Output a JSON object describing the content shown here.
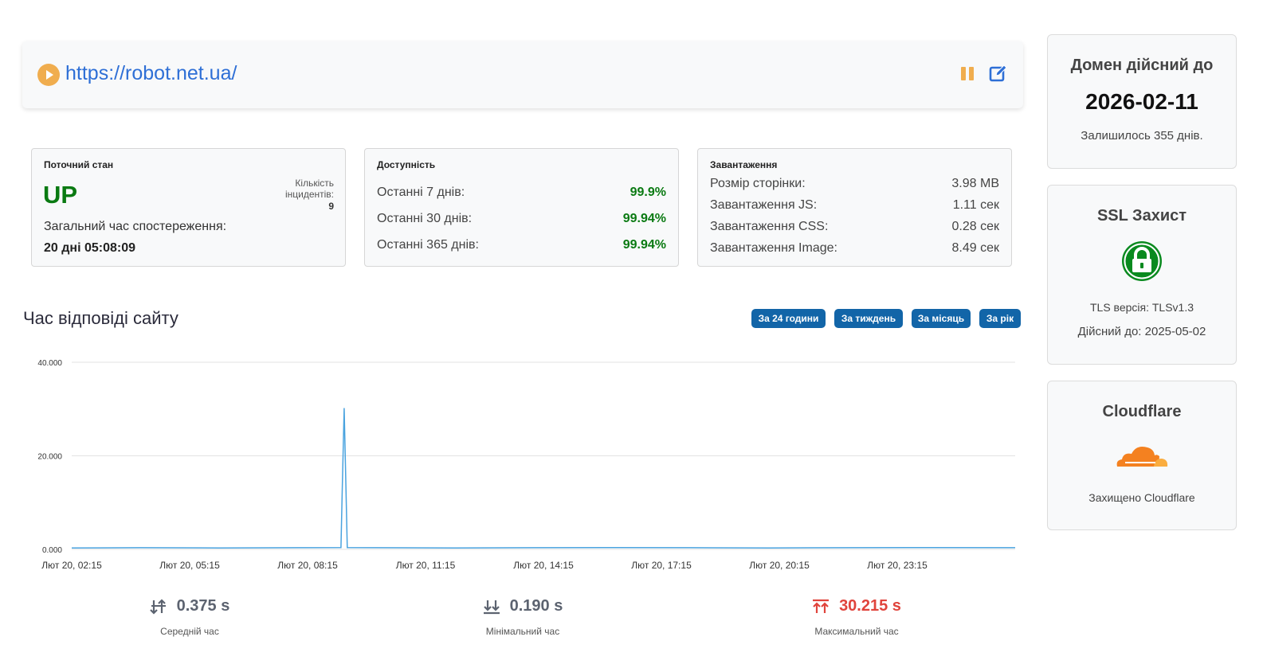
{
  "monitor": {
    "url": "https://robot.net.ua/",
    "status_color": "#f0ad4e",
    "actions": {
      "pause_icon": "pause-icon",
      "edit_icon": "edit-icon"
    }
  },
  "current_state": {
    "title": "Поточний стан",
    "status": "UP",
    "incidents_label": "Кількість інцидентів:",
    "incidents_value": "9",
    "observation_label": "Загальний час спостереження:",
    "observation_value": "20 дні 05:08:09"
  },
  "availability": {
    "title": "Доступність",
    "rows": [
      {
        "label": "Останні 7 днів:",
        "value": "99.9%"
      },
      {
        "label": "Останні 30 днів:",
        "value": "99.94%"
      },
      {
        "label": "Останні 365 днів:",
        "value": "99.94%"
      }
    ]
  },
  "loading": {
    "title": "Завантаження",
    "rows": [
      {
        "label": "Розмір сторінки:",
        "value": "3.98 MB"
      },
      {
        "label": "Завантаження JS:",
        "value": "1.11 сек"
      },
      {
        "label": "Завантаження CSS:",
        "value": "0.28 сек"
      },
      {
        "label": "Завантаження Image:",
        "value": "8.49 сек"
      }
    ]
  },
  "response_chart": {
    "title": "Час відповіді сайту",
    "periods": [
      "За 24 години",
      "За тиждень",
      "За місяць",
      "За рік"
    ]
  },
  "chart_data": {
    "type": "line",
    "title": "Час відповіді сайту",
    "xlabel": "",
    "ylabel": "",
    "ylim": [
      0,
      40
    ],
    "y_ticks": [
      "0.000",
      "20.000",
      "40.000"
    ],
    "x_ticks": [
      "Лют 20, 02:15",
      "Лют 20, 05:15",
      "Лют 20, 08:15",
      "Лют 20, 11:15",
      "Лют 20, 14:15",
      "Лют 20, 17:15",
      "Лют 20, 20:15",
      "Лют 20, 23:15"
    ],
    "x_hours": [
      2.25,
      5.25,
      8.25,
      11.25,
      14.25,
      17.25,
      20.25,
      23.25
    ],
    "x_range_hours": [
      2.25,
      26.25
    ],
    "series": [
      {
        "color": "#4aa3df",
        "x": [
          2.25,
          4.0,
          6.0,
          8.0,
          9.1,
          9.13,
          9.18,
          9.23,
          9.26,
          10.0,
          12.0,
          14.0,
          16.0,
          18.0,
          20.0,
          22.0,
          24.0,
          26.25
        ],
        "y": [
          0.3,
          0.35,
          0.3,
          0.35,
          0.4,
          12.0,
          30.215,
          12.0,
          0.4,
          0.35,
          0.3,
          0.35,
          0.4,
          0.35,
          0.3,
          0.35,
          0.4,
          0.35
        ]
      }
    ],
    "grid": true
  },
  "stats": [
    {
      "value": "0.375 s",
      "label": "Середній час",
      "icon": "arrows-updown-icon"
    },
    {
      "value": "0.190 s",
      "label": "Мінімальний час",
      "icon": "double-arrow-down-icon"
    },
    {
      "value": "30.215 s",
      "label": "Максимальний час",
      "icon": "double-arrow-up-icon",
      "color": "#e0443c"
    }
  ],
  "domain": {
    "title": "Домен дійсний до",
    "date": "2026-02-11",
    "remaining": "Залишилось 355 днів."
  },
  "ssl": {
    "title": "SSL Захист",
    "icon": "lock-icon",
    "tls": "TLS версія: TLSv1.3",
    "valid": "Дійсний до: 2025-05-02",
    "color": "#0a8a1f"
  },
  "cloudflare": {
    "title": "Cloudflare",
    "icon": "cloud-icon",
    "status": "Захищено Cloudflare",
    "color": "#f48120"
  }
}
